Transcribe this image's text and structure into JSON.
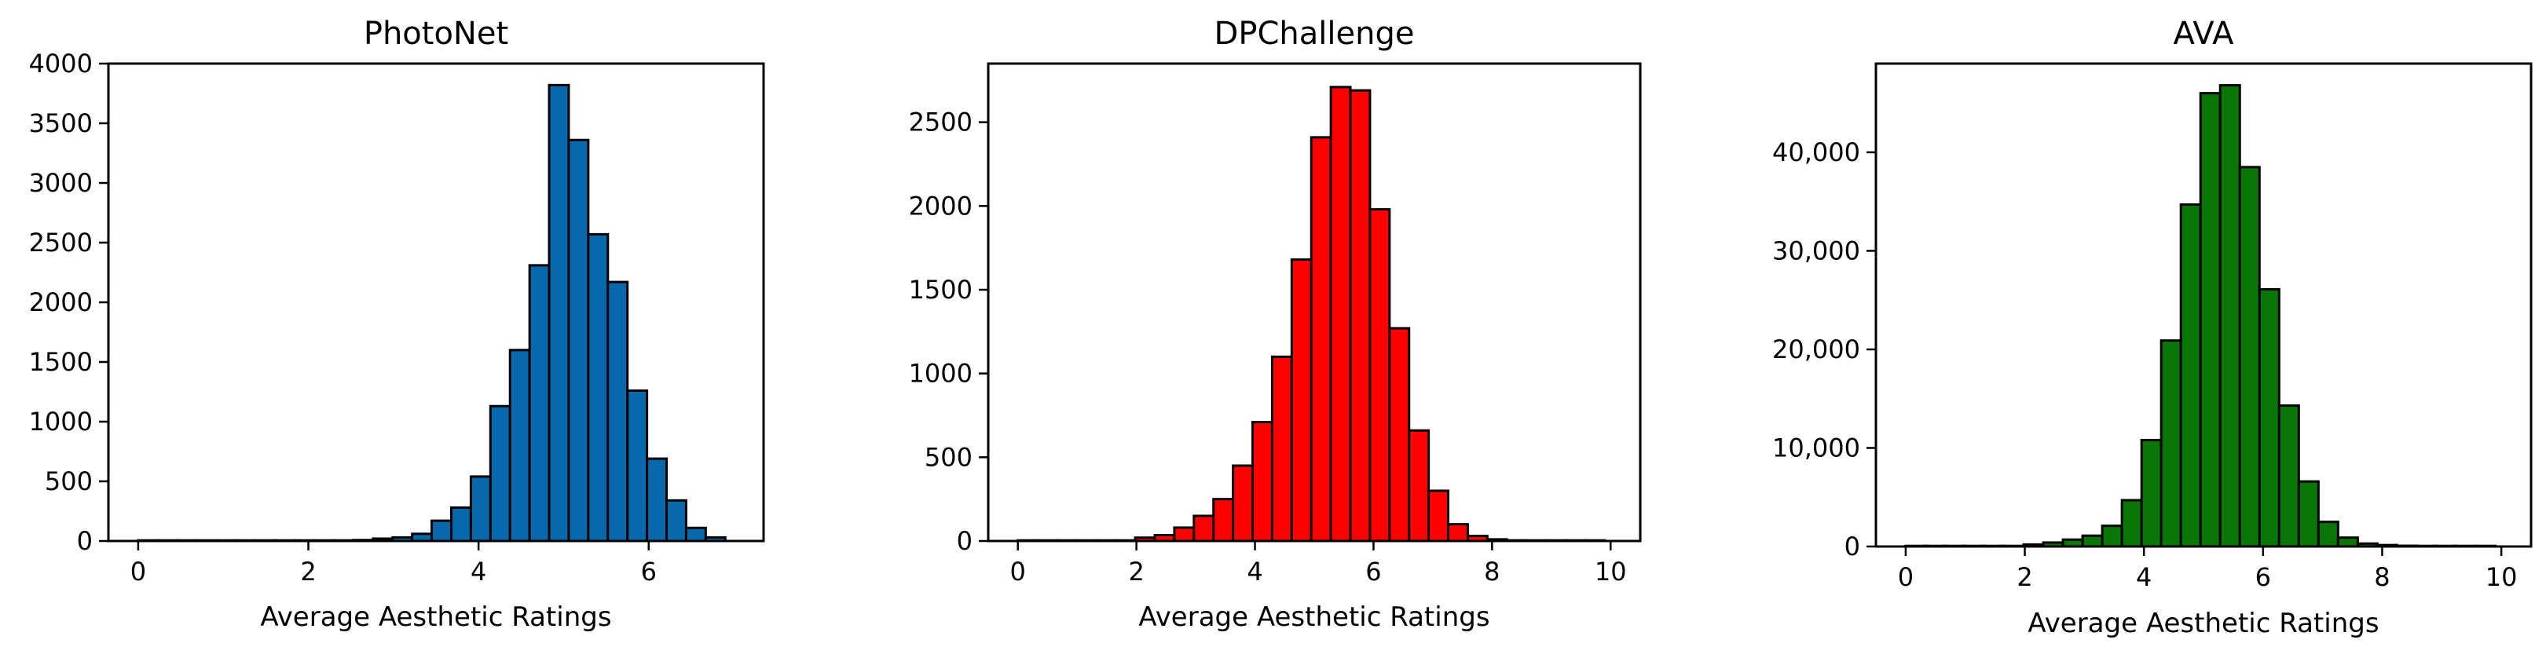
{
  "chart_data": [
    {
      "type": "bar",
      "title": "PhotoNet",
      "xlabel": "Average Aesthetic Ratings",
      "ylabel": "",
      "color": "#0768ac",
      "edge_color": "#000000",
      "bin_width": 0.23,
      "xlim": [
        -0.35,
        7.35
      ],
      "ylim": [
        0,
        4000
      ],
      "x_ticks": [
        0,
        2,
        4,
        6
      ],
      "x_tick_labels": [
        "0",
        "2",
        "4",
        "6"
      ],
      "y_ticks": [
        0,
        500,
        1000,
        1500,
        2000,
        2500,
        3000,
        3500,
        4000
      ],
      "y_tick_labels": [
        "0",
        "500",
        "1000",
        "1500",
        "2000",
        "2500",
        "3000",
        "3500",
        "4000"
      ],
      "bin_starts": [
        0.0,
        0.23,
        0.46,
        0.69,
        0.92,
        1.15,
        1.38,
        1.61,
        1.84,
        2.07,
        2.3,
        2.53,
        2.76,
        2.99,
        3.22,
        3.45,
        3.68,
        3.91,
        4.14,
        4.37,
        4.6,
        4.83,
        5.06,
        5.29,
        5.52,
        5.75,
        5.98,
        6.21,
        6.44,
        6.67
      ],
      "values": [
        2,
        1,
        1,
        1,
        1,
        1,
        1,
        2,
        2,
        3,
        5,
        8,
        20,
        30,
        60,
        170,
        280,
        540,
        1130,
        1600,
        2310,
        3820,
        3360,
        2570,
        2170,
        1260,
        690,
        340,
        110,
        30
      ]
    },
    {
      "type": "bar",
      "title": "DPChallenge",
      "xlabel": "Average Aesthetic Ratings",
      "ylabel": "",
      "color": "#ff0000",
      "edge_color": "#000000",
      "bin_width": 0.33,
      "xlim": [
        -0.5,
        10.5
      ],
      "ylim": [
        0,
        2850
      ],
      "x_ticks": [
        0,
        2,
        4,
        6,
        8,
        10
      ],
      "x_tick_labels": [
        "0",
        "2",
        "4",
        "6",
        "8",
        "10"
      ],
      "y_ticks": [
        0,
        500,
        1000,
        1500,
        2000,
        2500
      ],
      "y_tick_labels": [
        "0",
        "500",
        "1000",
        "1500",
        "2000",
        "2500"
      ],
      "bin_starts": [
        0.0,
        0.33,
        0.66,
        0.99,
        1.32,
        1.65,
        1.98,
        2.31,
        2.64,
        2.97,
        3.3,
        3.63,
        3.96,
        4.29,
        4.62,
        4.95,
        5.28,
        5.61,
        5.94,
        6.27,
        6.6,
        6.93,
        7.26,
        7.59,
        7.92,
        8.25,
        8.58,
        8.91,
        9.24,
        9.57
      ],
      "values": [
        1,
        1,
        1,
        1,
        1,
        2,
        20,
        35,
        80,
        150,
        250,
        450,
        710,
        1100,
        1680,
        2410,
        2710,
        2690,
        1980,
        1270,
        660,
        300,
        100,
        30,
        10,
        4,
        2,
        1,
        1,
        1
      ]
    },
    {
      "type": "bar",
      "title": "AVA",
      "xlabel": "Average Aesthetic Ratings",
      "ylabel": "",
      "color": "#087708",
      "edge_color": "#000000",
      "bin_width": 0.33,
      "xlim": [
        -0.5,
        10.5
      ],
      "ylim": [
        0,
        49000
      ],
      "x_ticks": [
        0,
        2,
        4,
        6,
        8,
        10
      ],
      "x_tick_labels": [
        "0",
        "2",
        "4",
        "6",
        "8",
        "10"
      ],
      "y_ticks": [
        0,
        10000,
        20000,
        30000,
        40000
      ],
      "y_tick_labels": [
        "0",
        "10,000",
        "20,000",
        "30,000",
        "40,000"
      ],
      "bin_starts": [
        0.0,
        0.33,
        0.66,
        0.99,
        1.32,
        1.65,
        1.98,
        2.31,
        2.64,
        2.97,
        3.3,
        3.63,
        3.96,
        4.29,
        4.62,
        4.95,
        5.28,
        5.61,
        5.94,
        6.27,
        6.6,
        6.93,
        7.26,
        7.59,
        7.92,
        8.25,
        8.58,
        8.91,
        9.24,
        9.57
      ],
      "values": [
        20,
        20,
        20,
        30,
        40,
        60,
        200,
        400,
        700,
        1100,
        2100,
        4700,
        10800,
        20900,
        34700,
        46000,
        46800,
        38500,
        26100,
        14300,
        6600,
        2500,
        900,
        300,
        150,
        80,
        40,
        20,
        20,
        10
      ]
    }
  ]
}
